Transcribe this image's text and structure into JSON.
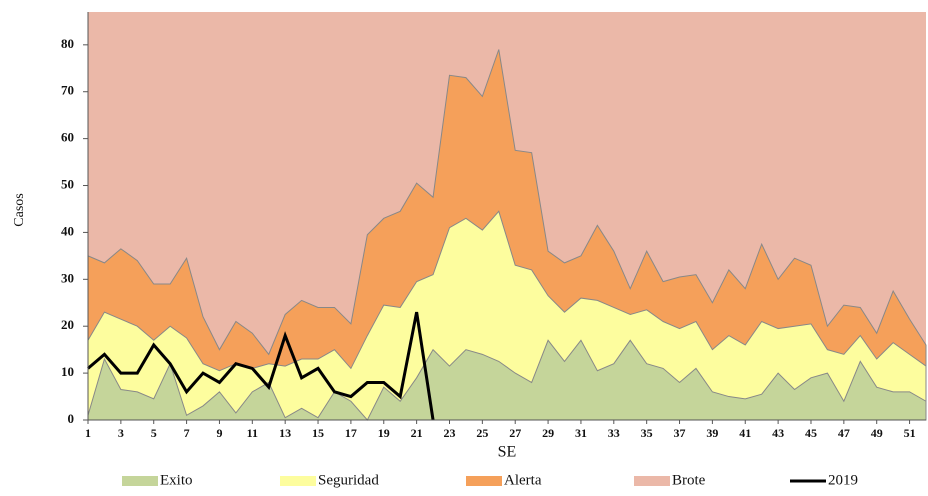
{
  "chart_data": {
    "type": "area",
    "x_label": "SE",
    "y_label": "Casos",
    "x": [
      1,
      2,
      3,
      4,
      5,
      6,
      7,
      8,
      9,
      10,
      11,
      12,
      13,
      14,
      15,
      16,
      17,
      18,
      19,
      20,
      21,
      22,
      23,
      24,
      25,
      26,
      27,
      28,
      29,
      30,
      31,
      32,
      33,
      34,
      35,
      36,
      37,
      38,
      39,
      40,
      41,
      42,
      43,
      44,
      45,
      46,
      47,
      48,
      49,
      50,
      51,
      52
    ],
    "xlim": [
      1,
      52
    ],
    "xticks": [
      1,
      3,
      5,
      7,
      9,
      11,
      13,
      15,
      17,
      19,
      21,
      23,
      25,
      27,
      29,
      31,
      33,
      35,
      37,
      39,
      41,
      43,
      45,
      47,
      49,
      51
    ],
    "ylim": [
      0,
      87
    ],
    "yticks": [
      0,
      10,
      20,
      30,
      40,
      50,
      60,
      70,
      80
    ],
    "series": [
      {
        "name": "Exito",
        "color": "#c5d59a",
        "values": [
          1,
          13,
          6.5,
          6,
          4.5,
          12,
          1,
          3,
          6,
          1.5,
          6,
          8,
          0.5,
          2.5,
          0.5,
          6,
          4,
          0,
          7,
          4,
          9,
          15,
          11.5,
          15,
          14,
          12.5,
          10,
          8,
          17,
          12.5,
          17,
          10.5,
          12,
          17,
          12,
          11,
          8,
          11,
          6,
          5,
          4.5,
          5.5,
          10,
          6.5,
          9,
          10,
          4,
          12.5,
          7,
          6,
          6,
          4
        ]
      },
      {
        "name": "Seguridad",
        "color": "#fdfd9e",
        "values": [
          17,
          23,
          21.5,
          20,
          17,
          20,
          17.5,
          12,
          10.5,
          12,
          11,
          12,
          11.5,
          13,
          13,
          15,
          11,
          18,
          24.5,
          24,
          29.5,
          31,
          41,
          43,
          40.5,
          44.5,
          33,
          32,
          26.5,
          23,
          26,
          25.5,
          24,
          22.5,
          23.5,
          21,
          19.5,
          21,
          15,
          18,
          16,
          21,
          19.5,
          20,
          20.5,
          15,
          14,
          18,
          13,
          16.5,
          14,
          11.5
        ]
      },
      {
        "name": "Alerta",
        "color": "#f5a05a",
        "values": [
          35,
          33.5,
          36.5,
          34,
          29,
          29,
          34.5,
          22,
          15,
          21,
          18.5,
          14,
          22.5,
          25.5,
          24,
          24,
          20.5,
          39.5,
          43,
          44.5,
          50.5,
          47.5,
          73.5,
          73,
          69,
          79,
          57.5,
          57,
          36,
          33.5,
          35,
          41.5,
          36,
          28,
          36,
          29.5,
          30.5,
          31,
          25,
          32,
          28,
          37.5,
          30,
          34.5,
          33,
          20,
          24.5,
          24,
          18.5,
          27.5,
          21.5,
          16
        ]
      },
      {
        "name": "Brote",
        "color": "#ebb8a8"
      },
      {
        "name": "2019",
        "color": "#000000",
        "line": true,
        "values": [
          11,
          14,
          10,
          10,
          16,
          12,
          6,
          10,
          8,
          12,
          11,
          7,
          18,
          9,
          11,
          6,
          5,
          8,
          8,
          5,
          23,
          0,
          null,
          null,
          null,
          null,
          null,
          null,
          null,
          null,
          null,
          null,
          null,
          null,
          null,
          null,
          null,
          null,
          null,
          null,
          null,
          null,
          null,
          null,
          null,
          null,
          null,
          null,
          null,
          null,
          null,
          null
        ]
      }
    ]
  }
}
